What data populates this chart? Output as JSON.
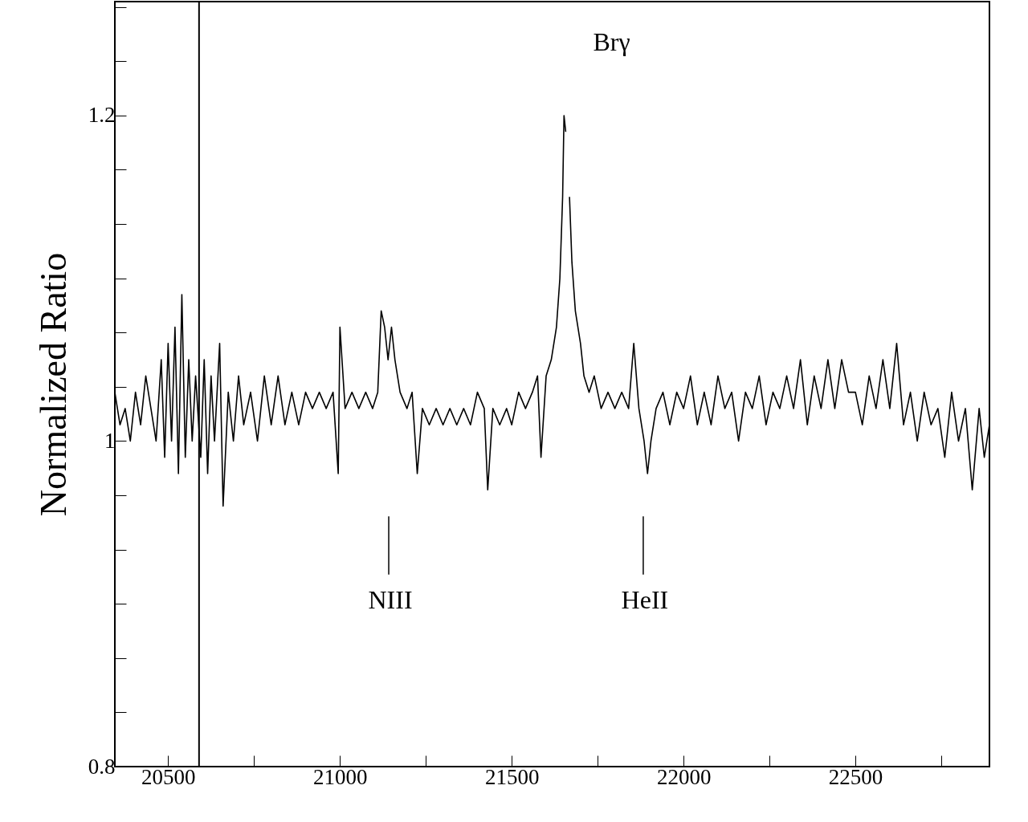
{
  "chart_data": {
    "type": "line",
    "ylabel": "Normalized Ratio",
    "xlim": [
      20345,
      22890
    ],
    "ylim": [
      0.8,
      1.27
    ],
    "xticks": [
      20500,
      {
        "value": 20750,
        "label": null
      },
      21000,
      {
        "value": 21250,
        "label": null
      },
      21500,
      {
        "value": 21750,
        "label": null
      },
      22000,
      {
        "value": 22250,
        "label": null
      },
      22500,
      {
        "value": 22750,
        "label": null
      }
    ],
    "yticks": [
      0.8,
      {
        "value": 0.8333,
        "label": null
      },
      {
        "value": 0.8667,
        "label": null
      },
      {
        "value": 0.9,
        "label": null
      },
      {
        "value": 0.9333,
        "label": null
      },
      {
        "value": 0.9667,
        "label": null
      },
      1,
      {
        "value": 1.0333,
        "label": null
      },
      {
        "value": 1.0667,
        "label": null
      },
      {
        "value": 1.1,
        "label": null
      },
      {
        "value": 1.1333,
        "label": null
      },
      {
        "value": 1.1667,
        "label": null
      },
      1.2,
      {
        "value": 1.2333,
        "label": null
      },
      {
        "value": 1.2667,
        "label": null
      }
    ],
    "grid": false,
    "marker": "none",
    "line_style": "solid",
    "x": [
      20345,
      20360,
      20375,
      20390,
      20405,
      20420,
      20435,
      20450,
      20465,
      20480,
      20490,
      20500,
      20510,
      20520,
      20530,
      20540,
      20550,
      20560,
      20570,
      20580,
      20595,
      20605,
      20615,
      20625,
      20635,
      20650,
      20660,
      20675,
      20690,
      20705,
      20720,
      20740,
      20760,
      20780,
      20800,
      20820,
      20840,
      20860,
      20880,
      20900,
      20920,
      20940,
      20960,
      20980,
      20995,
      21000,
      21015,
      21035,
      21055,
      21075,
      21095,
      21110,
      21120,
      21130,
      21140,
      21150,
      21160,
      21175,
      21195,
      21210,
      21225,
      21240,
      21260,
      21280,
      21300,
      21320,
      21340,
      21360,
      21380,
      21400,
      21420,
      21430,
      21445,
      21465,
      21485,
      21500,
      21520,
      21540,
      21560,
      21575,
      21585,
      21600,
      21615,
      21630,
      21640,
      21648,
      21652,
      21657,
      21660,
      21664,
      21668,
      21675,
      21685,
      21700,
      21710,
      21725,
      21740,
      21760,
      21780,
      21800,
      21820,
      21840,
      21855,
      21870,
      21885,
      21895,
      21905,
      21920,
      21940,
      21960,
      21980,
      22000,
      22020,
      22040,
      22060,
      22080,
      22100,
      22120,
      22140,
      22160,
      22180,
      22200,
      22220,
      22240,
      22260,
      22280,
      22300,
      22320,
      22340,
      22360,
      22380,
      22400,
      22420,
      22440,
      22460,
      22480,
      22500,
      22520,
      22540,
      22560,
      22580,
      22600,
      22620,
      22640,
      22660,
      22680,
      22700,
      22720,
      22740,
      22760,
      22780,
      22800,
      22820,
      22840,
      22860,
      22875,
      22890
    ],
    "series": [
      {
        "color": "#000000",
        "values": [
          1.03,
          1.01,
          1.02,
          1.0,
          1.03,
          1.01,
          1.04,
          1.02,
          1.0,
          1.05,
          0.99,
          1.06,
          1.0,
          1.07,
          0.98,
          1.09,
          0.99,
          1.05,
          1.0,
          1.04,
          0.99,
          1.05,
          0.98,
          1.04,
          1.0,
          1.06,
          0.96,
          1.03,
          1.0,
          1.04,
          1.01,
          1.03,
          1.0,
          1.04,
          1.01,
          1.04,
          1.01,
          1.03,
          1.01,
          1.03,
          1.02,
          1.03,
          1.02,
          1.03,
          0.98,
          1.07,
          1.02,
          1.03,
          1.02,
          1.03,
          1.02,
          1.03,
          1.08,
          1.07,
          1.05,
          1.07,
          1.05,
          1.03,
          1.02,
          1.03,
          0.98,
          1.02,
          1.01,
          1.02,
          1.01,
          1.02,
          1.01,
          1.02,
          1.01,
          1.03,
          1.02,
          0.97,
          1.02,
          1.01,
          1.02,
          1.01,
          1.03,
          1.02,
          1.03,
          1.04,
          0.99,
          1.04,
          1.05,
          1.07,
          1.1,
          1.15,
          1.2,
          1.19,
          null,
          null,
          1.15,
          1.11,
          1.08,
          1.06,
          1.04,
          1.03,
          1.04,
          1.02,
          1.03,
          1.02,
          1.03,
          1.02,
          1.06,
          1.02,
          1.0,
          0.98,
          1.0,
          1.02,
          1.03,
          1.01,
          1.03,
          1.02,
          1.04,
          1.01,
          1.03,
          1.01,
          1.04,
          1.02,
          1.03,
          1.0,
          1.03,
          1.02,
          1.04,
          1.01,
          1.03,
          1.02,
          1.04,
          1.02,
          1.05,
          1.01,
          1.04,
          1.02,
          1.05,
          1.02,
          1.05,
          1.03,
          1.03,
          1.01,
          1.04,
          1.02,
          1.05,
          1.02,
          1.06,
          1.01,
          1.03,
          1.0,
          1.03,
          1.01,
          1.02,
          0.99,
          1.03,
          1.0,
          1.02,
          0.97,
          1.02,
          0.99,
          1.01
        ]
      }
    ],
    "ref_lines": [
      {
        "axis": "x",
        "value": 20590,
        "color": "#000000"
      }
    ],
    "annotations": [
      "Brγ",
      "NIII",
      "HeII"
    ]
  }
}
